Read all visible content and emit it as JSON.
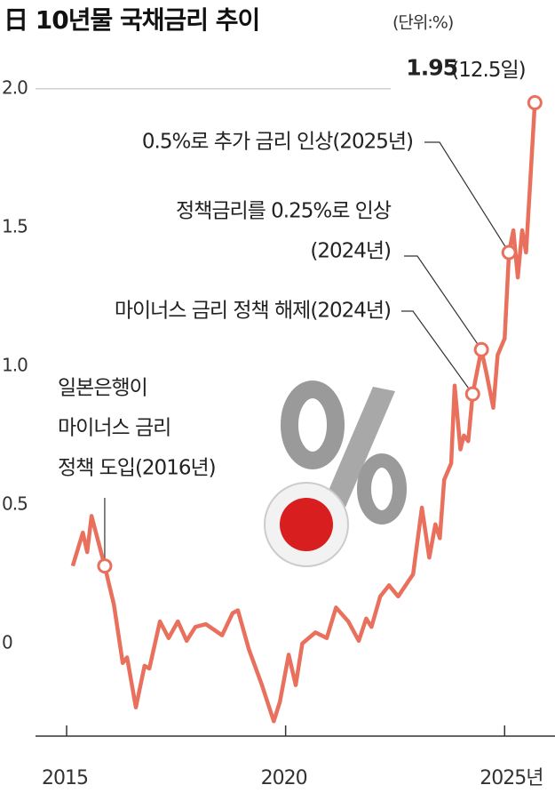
{
  "chart_data": {
    "type": "line",
    "title": "日 10년물 국채금리 추이",
    "unit": "(단위:%)",
    "x": [
      2015.14,
      2015.37,
      2015.47,
      2015.57,
      2015.87,
      2016.08,
      2016.28,
      2016.38,
      2016.58,
      2016.78,
      2016.89,
      2017.13,
      2017.33,
      2017.54,
      2017.74,
      2017.94,
      2018.18,
      2018.55,
      2018.79,
      2018.91,
      2019.16,
      2019.46,
      2019.73,
      2019.87,
      2020.07,
      2020.23,
      2020.38,
      2020.68,
      2020.94,
      2021.15,
      2021.43,
      2021.67,
      2021.84,
      2021.96,
      2022.16,
      2022.36,
      2022.57,
      2022.91,
      2023.11,
      2023.28,
      2023.42,
      2023.52,
      2023.62,
      2023.78,
      2023.86,
      2023.99,
      2024.07,
      2024.17,
      2024.27,
      2024.47,
      2024.59,
      2024.74,
      2024.84,
      2025.0,
      2025.1,
      2025.2,
      2025.3,
      2025.4,
      2025.49,
      2025.59,
      2025.69
    ],
    "series": [
      {
        "color": "#e8705c",
        "values": [
          0.28,
          0.4,
          0.33,
          0.46,
          0.28,
          0.14,
          -0.07,
          -0.05,
          -0.23,
          -0.08,
          -0.09,
          0.08,
          0.02,
          0.08,
          0.01,
          0.06,
          0.07,
          0.03,
          0.11,
          0.12,
          -0.02,
          -0.15,
          -0.28,
          -0.21,
          -0.04,
          -0.15,
          0.0,
          0.04,
          0.02,
          0.13,
          0.08,
          0.01,
          0.09,
          0.06,
          0.17,
          0.21,
          0.17,
          0.25,
          0.49,
          0.31,
          0.43,
          0.38,
          0.59,
          0.65,
          0.93,
          0.7,
          0.75,
          0.73,
          0.9,
          1.06,
          0.97,
          0.85,
          1.04,
          1.1,
          1.41,
          1.49,
          1.32,
          1.49,
          1.41,
          1.68,
          1.95
        ]
      }
    ],
    "xlim": [
      2014.29,
      2026.15
    ],
    "ylim": [
      -0.34,
      2.128
    ],
    "xticks": [
      2015,
      2020,
      {
        "value": 2025,
        "label": "2025년"
      }
    ],
    "yticks": [
      {
        "value": 2,
        "label": "2.0"
      },
      1.5,
      {
        "value": 1,
        "label": "1.0"
      },
      0.5,
      0
    ],
    "latest_date": "(12.5일)",
    "annotations": [
      {
        "x": 2015.87,
        "lines": [
          "일본은행이",
          "마이너스 금리",
          "정책 도입(2016년)"
        ]
      },
      {
        "x": 2024.27,
        "lines": [
          "마이너스 금리 정책 해제(2024년)"
        ]
      },
      {
        "x": 2024.47,
        "lines": [
          "정책금리를 0.25%로 인상",
          "(2024년)"
        ]
      },
      {
        "x": 2025.1,
        "lines": [
          "0.5%로 추가 금리 인상(2025년)"
        ]
      }
    ]
  }
}
